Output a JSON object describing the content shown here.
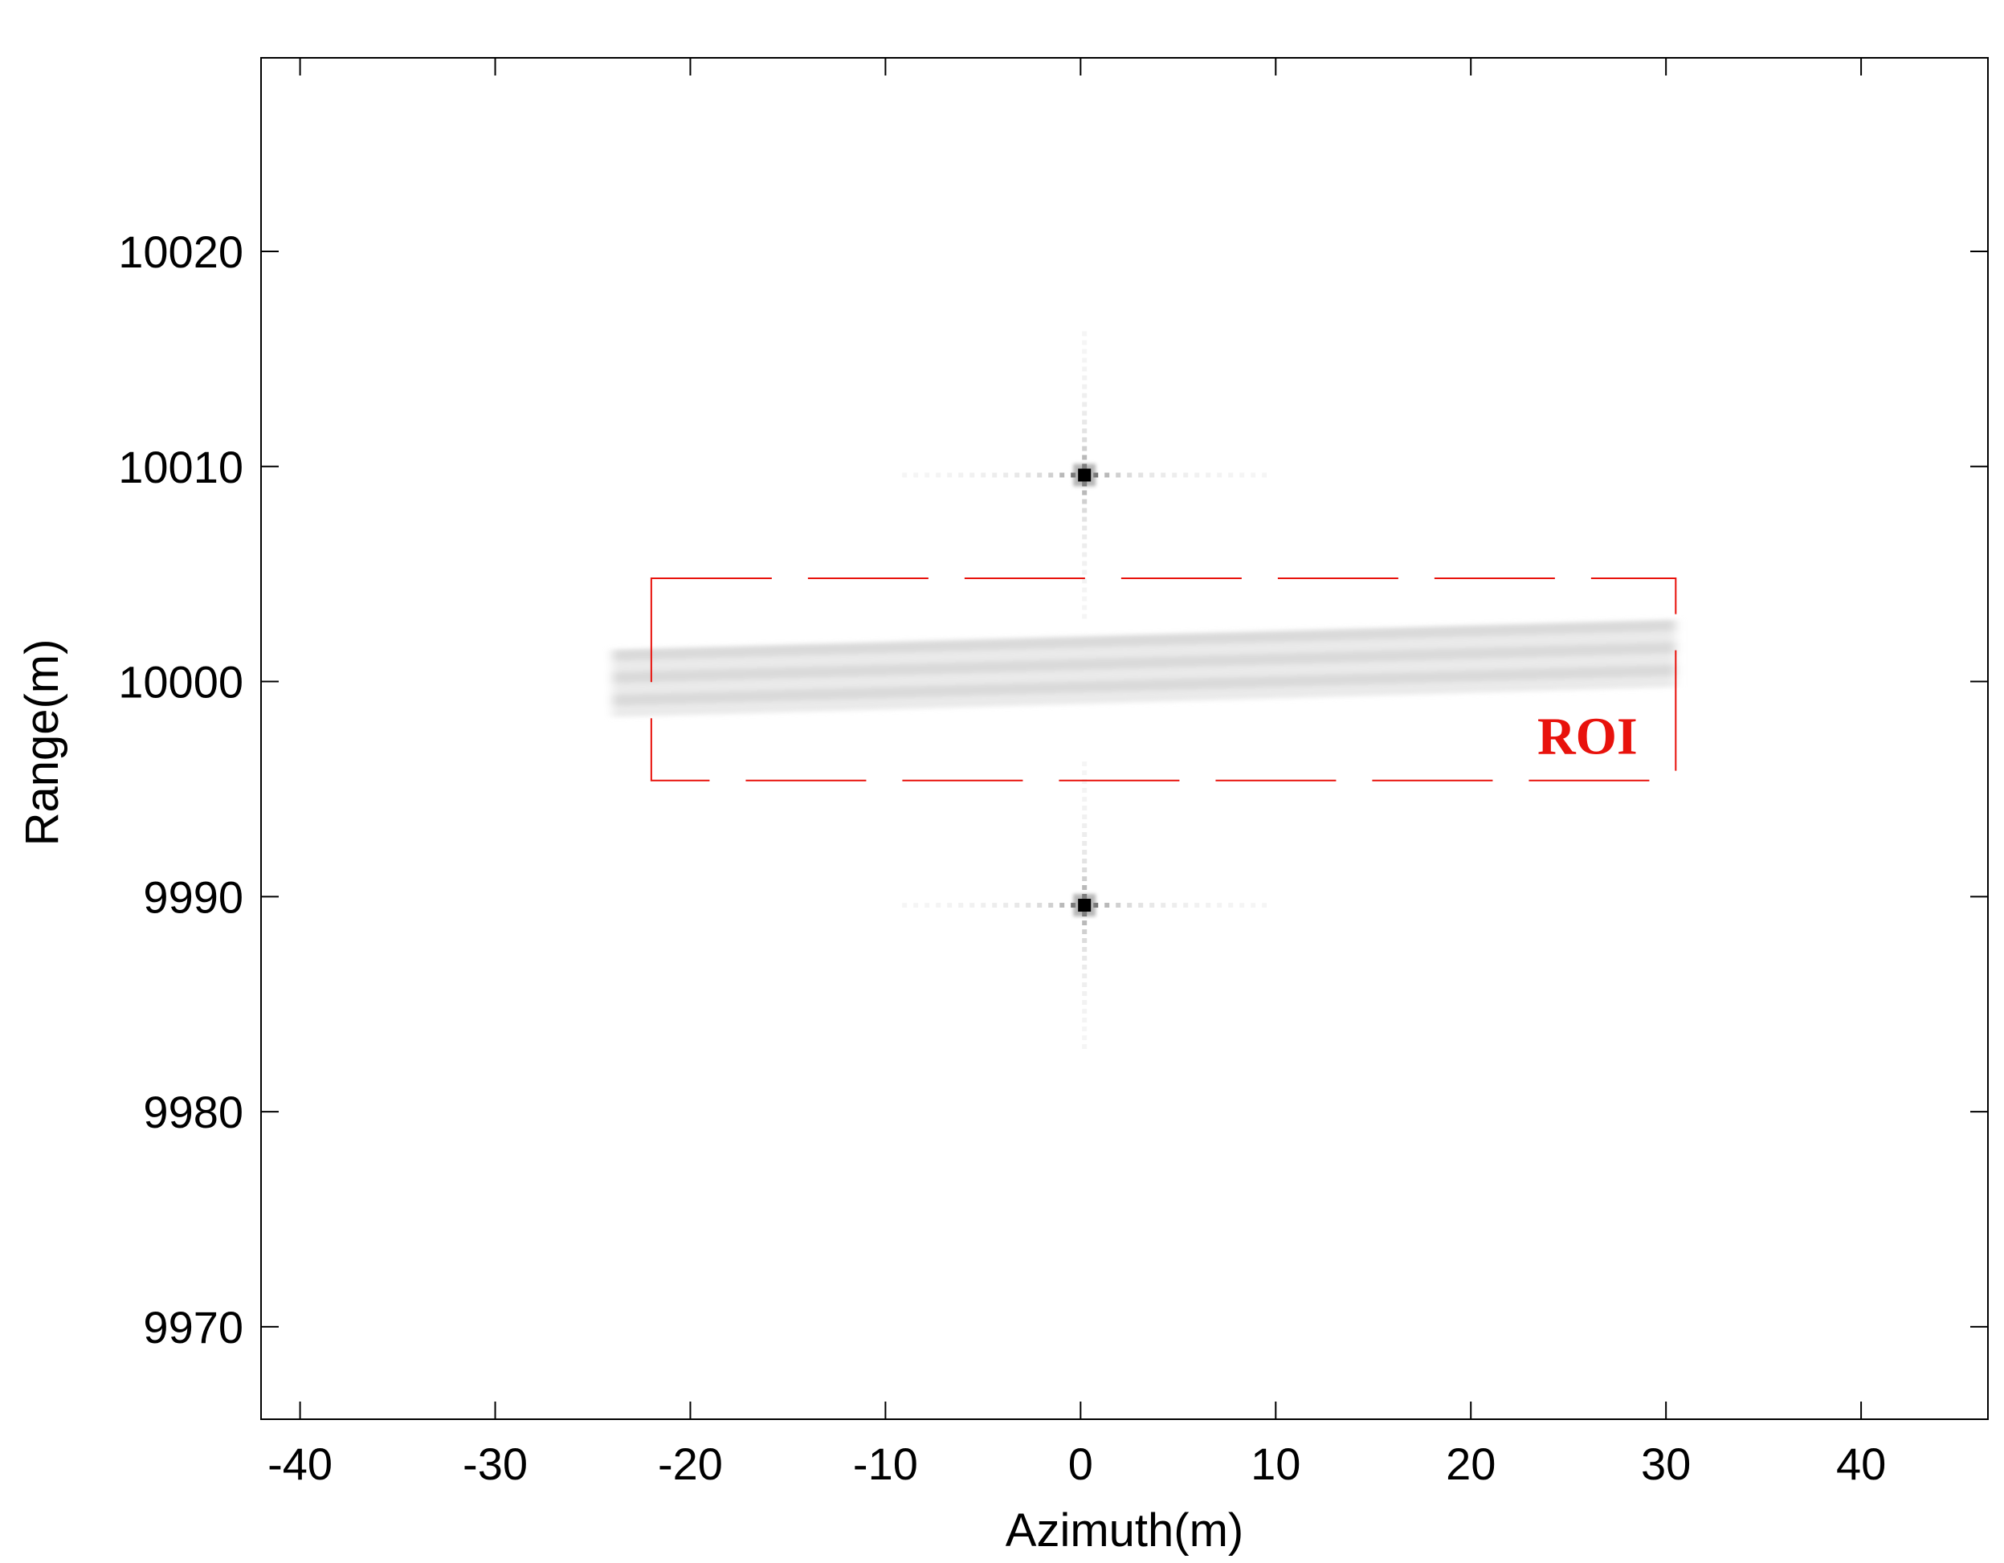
{
  "chart_data": {
    "type": "heatmap",
    "title": "",
    "xlabel": "Azimuth(m)",
    "ylabel": "Range(m)",
    "xlim": [
      -42,
      46.5
    ],
    "ylim": [
      9965.7,
      10029
    ],
    "xticks": [
      -40,
      -30,
      -20,
      -10,
      0,
      10,
      20,
      30,
      40
    ],
    "xtick_labels": [
      "-40",
      "-30",
      "-20",
      "-10",
      "0",
      "10",
      "20",
      "30",
      "40"
    ],
    "yticks": [
      9970,
      9980,
      9990,
      10000,
      10010,
      10020
    ],
    "ytick_labels": [
      "9970",
      "9980",
      "9990",
      "10000",
      "10010",
      "10020"
    ],
    "colormap": "gray-inverted",
    "grid": false,
    "point_targets": [
      {
        "azimuth": 0.2,
        "range": 10009.6
      },
      {
        "azimuth": 0.2,
        "range": 9989.6
      }
    ],
    "extended_target": {
      "azimuth_range": [
        -24,
        30.5
      ],
      "range_center_start": 9999.8,
      "range_center_end": 10001.2
    },
    "annotations": [
      {
        "text": "ROI",
        "color": "#e8120c",
        "box": {
          "x": [
            -22,
            30.5
          ],
          "y": [
            9995.4,
            10004.8
          ]
        },
        "style": "dashed"
      }
    ]
  }
}
